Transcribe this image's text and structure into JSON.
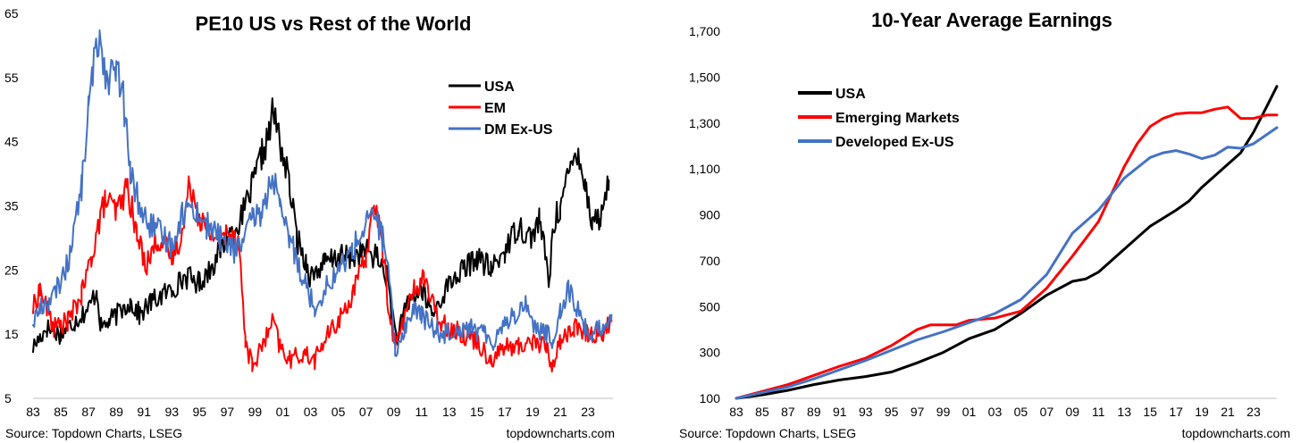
{
  "chart_data": [
    {
      "type": "line",
      "title": "PE10 US vs Rest of the World",
      "xlabel": "",
      "ylabel": "",
      "x_ticks": [
        "83",
        "85",
        "87",
        "89",
        "91",
        "93",
        "95",
        "97",
        "99",
        "01",
        "03",
        "05",
        "07",
        "09",
        "11",
        "13",
        "15",
        "17",
        "19",
        "21",
        "23"
      ],
      "x_range": [
        1983,
        2024.8
      ],
      "y_ticks": [
        5,
        15,
        25,
        35,
        45,
        55,
        65
      ],
      "ylim": [
        5,
        65
      ],
      "grid": false,
      "legend_position": "top-right",
      "series": [
        {
          "name": "USA",
          "color": "#000000",
          "x": [
            1983.0,
            1984.0,
            1985.0,
            1986.0,
            1987.0,
            1987.6,
            1987.9,
            1988.5,
            1990.0,
            1990.7,
            1991.5,
            1993.0,
            1994.0,
            1995.0,
            1996.0,
            1997.0,
            1998.0,
            1998.8,
            1999.5,
            2000.0,
            2000.3,
            2000.7,
            2001.5,
            2002.0,
            2002.7,
            2003.0,
            2004.0,
            2005.0,
            2006.0,
            2007.0,
            2007.8,
            2008.5,
            2009.2,
            2010.0,
            2011.0,
            2011.8,
            2013.0,
            2014.0,
            2015.0,
            2016.0,
            2017.0,
            2018.0,
            2018.9,
            2019.5,
            2020.2,
            2020.5,
            2021.0,
            2021.9,
            2022.3,
            2022.8,
            2023.3,
            2023.9,
            2024.5
          ],
          "y": [
            13,
            16,
            15,
            17,
            19,
            22,
            16,
            17,
            20,
            18,
            20,
            22,
            24,
            23,
            26,
            30,
            33,
            38,
            43,
            46,
            50,
            46,
            38,
            30,
            26,
            24,
            26,
            27,
            27,
            28,
            27,
            24,
            14,
            20,
            22,
            18,
            23,
            25,
            27,
            25,
            28,
            32,
            30,
            33,
            23,
            32,
            35,
            42,
            44,
            38,
            33,
            33,
            39
          ]
        },
        {
          "name": "EM",
          "color": "#FF0000",
          "x": [
            1983.0,
            1983.5,
            1984.5,
            1985.5,
            1986.5,
            1987.2,
            1987.6,
            1988.2,
            1989.0,
            1989.8,
            1990.5,
            1991.2,
            1992.0,
            1993.0,
            1993.8,
            1994.3,
            1994.9,
            1995.5,
            1996.5,
            1997.2,
            1997.8,
            1998.3,
            1998.8,
            1999.5,
            2000.3,
            2000.8,
            2001.5,
            2002.5,
            2003.3,
            2004.0,
            2005.0,
            2006.0,
            2007.0,
            2007.6,
            2008.2,
            2008.6,
            2009.1,
            2009.8,
            2010.5,
            2011.2,
            2012.0,
            2013.0,
            2014.0,
            2015.0,
            2016.0,
            2017.0,
            2018.0,
            2019.0,
            2020.0,
            2020.4,
            2021.0,
            2022.0,
            2023.0,
            2024.0,
            2024.7
          ],
          "y": [
            19,
            22,
            16,
            17,
            21,
            27,
            31,
            36,
            34,
            38,
            30,
            26,
            30,
            27,
            31,
            39,
            34,
            31,
            30,
            31,
            30,
            14,
            10,
            13,
            17,
            13,
            11,
            12,
            11,
            14,
            17,
            21,
            27,
            36,
            28,
            20,
            13,
            18,
            22,
            24,
            18,
            16,
            15,
            14,
            11,
            13,
            13,
            14,
            13,
            10,
            14,
            16,
            15,
            15,
            17
          ]
        },
        {
          "name": "DM Ex-US",
          "color": "#4472C4",
          "x": [
            1983.0,
            1983.5,
            1984.5,
            1985.5,
            1986.5,
            1987.0,
            1987.3,
            1987.8,
            1988.3,
            1989.0,
            1989.5,
            1990.0,
            1991.0,
            1992.0,
            1993.0,
            1993.8,
            1994.5,
            1995.5,
            1996.5,
            1997.5,
            1998.3,
            1998.8,
            1999.5,
            2000.3,
            2000.8,
            2001.5,
            2002.3,
            2002.8,
            2003.3,
            2004.0,
            2005.0,
            2006.0,
            2007.0,
            2007.6,
            2008.2,
            2008.6,
            2009.1,
            2009.8,
            2010.5,
            2011.0,
            2011.8,
            2012.5,
            2013.5,
            2014.5,
            2015.5,
            2016.2,
            2017.0,
            2017.8,
            2018.5,
            2019.2,
            2020.0,
            2020.5,
            2021.0,
            2021.6,
            2022.2,
            2022.8,
            2023.3,
            2024.0,
            2024.7
          ],
          "y": [
            17,
            19,
            21,
            26,
            38,
            50,
            56,
            62,
            55,
            56,
            52,
            40,
            33,
            31,
            29,
            34,
            35,
            32,
            30,
            28,
            30,
            33,
            34,
            40,
            34,
            30,
            25,
            22,
            19,
            22,
            25,
            28,
            32,
            34,
            30,
            25,
            12,
            16,
            19,
            18,
            16,
            15,
            16,
            16,
            15,
            14,
            17,
            18,
            20,
            16,
            15,
            14,
            19,
            22,
            19,
            16,
            15,
            16,
            18
          ]
        }
      ]
    },
    {
      "type": "line",
      "title": "10-Year Average Earnings",
      "xlabel": "",
      "ylabel": "",
      "x_ticks": [
        "83",
        "85",
        "87",
        "89",
        "91",
        "93",
        "95",
        "97",
        "99",
        "01",
        "03",
        "05",
        "07",
        "09",
        "11",
        "13",
        "15",
        "17",
        "19",
        "21",
        "23"
      ],
      "x_range": [
        1983,
        2024.8
      ],
      "y_ticks": [
        "100",
        "300",
        "500",
        "700",
        "900",
        "1,100",
        "1,300",
        "1,500",
        "1,700"
      ],
      "ylim": [
        100,
        1700
      ],
      "grid": false,
      "legend_position": "top-left",
      "series": [
        {
          "name": "USA",
          "color": "#000000",
          "x": [
            1983,
            1985,
            1987,
            1989,
            1991,
            1993,
            1995,
            1997,
            1999,
            2001,
            2003,
            2005,
            2007,
            2009,
            2010,
            2011,
            2013,
            2015,
            2017,
            2018,
            2019,
            2021,
            2022,
            2023,
            2024,
            2024.8
          ],
          "y": [
            100,
            115,
            135,
            160,
            180,
            195,
            215,
            255,
            300,
            360,
            400,
            470,
            550,
            610,
            620,
            650,
            750,
            850,
            920,
            960,
            1020,
            1120,
            1170,
            1260,
            1370,
            1460
          ]
        },
        {
          "name": "Emerging Markets",
          "color": "#FF0000",
          "x": [
            1983,
            1985,
            1987,
            1989,
            1991,
            1993,
            1995,
            1997,
            1998,
            2000,
            2001,
            2003,
            2005,
            2007,
            2009,
            2011,
            2013,
            2014,
            2015,
            2016,
            2017,
            2018,
            2019,
            2020,
            2021,
            2022,
            2023,
            2024,
            2024.8
          ],
          "y": [
            100,
            130,
            160,
            200,
            240,
            275,
            330,
            400,
            420,
            420,
            440,
            450,
            480,
            580,
            720,
            870,
            1110,
            1210,
            1285,
            1320,
            1340,
            1345,
            1345,
            1360,
            1370,
            1320,
            1320,
            1335,
            1335
          ]
        },
        {
          "name": "Developed Ex-US",
          "color": "#4472C4",
          "x": [
            1983,
            1985,
            1987,
            1989,
            1991,
            1993,
            1995,
            1997,
            1999,
            2001,
            2003,
            2005,
            2007,
            2009,
            2011,
            2013,
            2015,
            2016,
            2017,
            2018,
            2019,
            2020,
            2021,
            2022,
            2023,
            2024.8
          ],
          "y": [
            100,
            125,
            150,
            185,
            225,
            265,
            310,
            355,
            390,
            430,
            470,
            530,
            640,
            820,
            920,
            1060,
            1150,
            1170,
            1180,
            1165,
            1145,
            1160,
            1195,
            1190,
            1210,
            1280
          ]
        }
      ]
    }
  ],
  "footer": {
    "left_source": "Source: Topdown Charts, LSEG",
    "left_site": "topdowncharts.com",
    "right_source": "Source: Topdown Charts, LSEG",
    "right_site": "topdowncharts.com"
  }
}
